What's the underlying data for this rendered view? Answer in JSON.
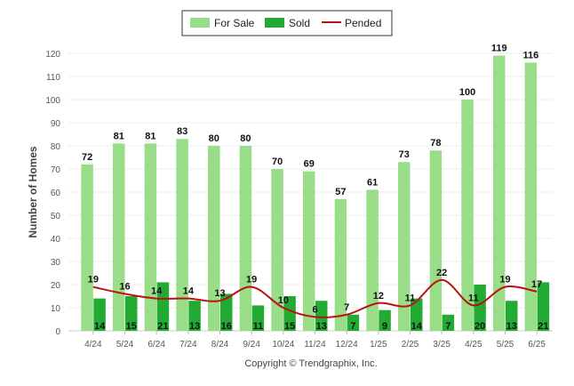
{
  "chart_data": {
    "type": "bar",
    "categories": [
      "4/24",
      "5/24",
      "6/24",
      "7/24",
      "8/24",
      "9/24",
      "10/24",
      "11/24",
      "12/24",
      "1/25",
      "2/25",
      "3/25",
      "4/25",
      "5/25",
      "6/25"
    ],
    "series": [
      {
        "name": "For Sale",
        "kind": "bar",
        "color": "#99dd88",
        "values": [
          72,
          81,
          81,
          83,
          80,
          80,
          70,
          69,
          57,
          61,
          73,
          78,
          100,
          119,
          116
        ]
      },
      {
        "name": "Sold",
        "kind": "bar",
        "color": "#22aa33",
        "values": [
          14,
          15,
          21,
          13,
          16,
          11,
          15,
          13,
          7,
          9,
          14,
          7,
          20,
          13,
          21
        ]
      },
      {
        "name": "Pended",
        "kind": "line",
        "color": "#bb1111",
        "values": [
          19,
          16,
          14,
          14,
          13,
          19,
          10,
          6,
          7,
          12,
          11,
          22,
          11,
          19,
          17
        ]
      }
    ],
    "ylabel": "Number of Homes",
    "ylim": [
      0,
      120
    ],
    "yticks": [
      0,
      10,
      20,
      30,
      40,
      50,
      60,
      70,
      80,
      90,
      100,
      110,
      120
    ],
    "grid": true,
    "legend": "top-center"
  },
  "footer": {
    "copyright": "Copyright © Trendgraphix, Inc."
  }
}
